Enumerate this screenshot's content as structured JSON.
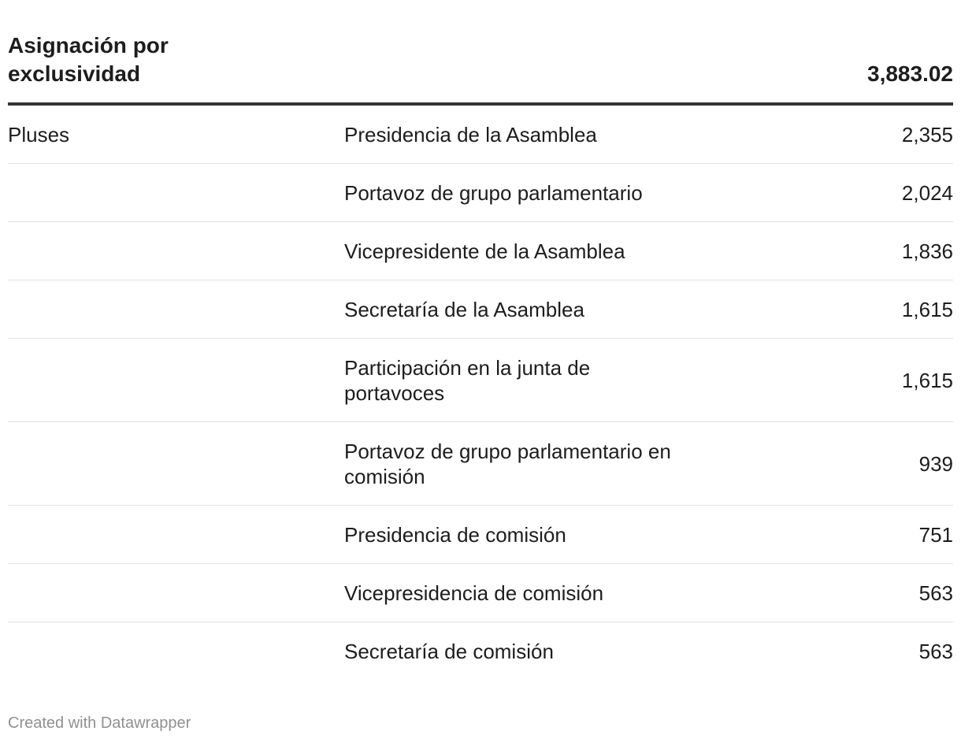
{
  "chart_data": {
    "type": "table",
    "header": {
      "title": "Asignación por exclusividad",
      "value": "3,883.02"
    },
    "group": "Pluses",
    "rows": [
      {
        "label": "Presidencia de la Asamblea",
        "value": "2,355"
      },
      {
        "label": "Portavoz de grupo parlamentario",
        "value": "2,024"
      },
      {
        "label": "Vicepresidente de la Asamblea",
        "value": "1,836"
      },
      {
        "label": "Secretaría de la Asamblea",
        "value": "1,615"
      },
      {
        "label": "Participación en la junta de portavoces",
        "value": "1,615"
      },
      {
        "label": "Portavoz de grupo parlamentario en comisión",
        "value": "939"
      },
      {
        "label": "Presidencia de comisión",
        "value": "751"
      },
      {
        "label": "Vicepresidencia de comisión",
        "value": "563"
      },
      {
        "label": "Secretaría de comisión",
        "value": "563"
      }
    ]
  },
  "footer": {
    "credit": "Created with Datawrapper"
  }
}
